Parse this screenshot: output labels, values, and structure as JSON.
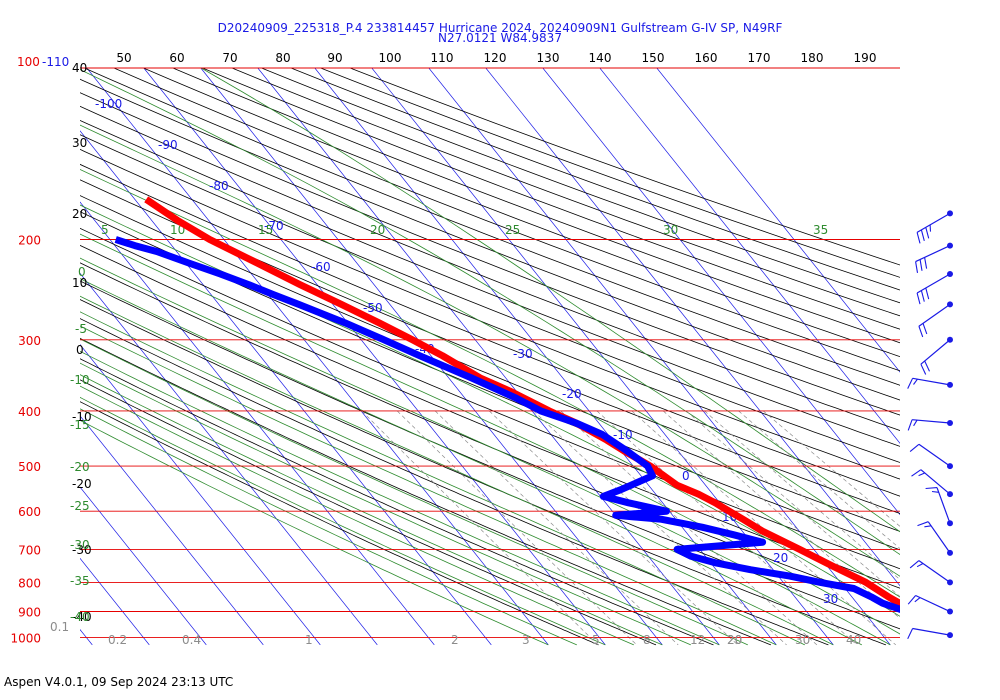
{
  "header": {
    "title_line1": "D20240909_225318_P.4 233814457 Hurricane 2024, 20240909N1 Gulfstream G-IV SP, N49RF",
    "title_line2": "N27.0121 W84.9837"
  },
  "footer": {
    "version": "Aspen V4.0.1, 09 Sep 2024  23:13 UTC"
  },
  "colors": {
    "pressure": "#e60000",
    "isotherm": "#1a1ae6",
    "theta": "#000000",
    "theta_e": "#2e8b2e",
    "mixing": "#8c8c8c",
    "temperature": "#ff0000",
    "dewpoint": "#0000ff",
    "wind": "#1a1ae6"
  },
  "chart_data": {
    "type": "skew-T log-P diagram",
    "y_axis": {
      "label_top": "100-110",
      "pressure_levels_hPa": [
        100,
        200,
        300,
        400,
        500,
        600,
        700,
        800,
        900,
        1000
      ]
    },
    "top_scale": [
      50,
      60,
      70,
      80,
      90,
      100,
      110,
      120,
      130,
      140,
      150,
      160,
      170,
      180,
      190
    ],
    "altitude_labels": [
      "40",
      "30",
      "20",
      "10",
      "0",
      "-10",
      "-20",
      "-30",
      "-40"
    ],
    "isotherm_labels_C": [
      "-100",
      "-90",
      "-80",
      "-70",
      "-60",
      "-50",
      "-40",
      "-30",
      "-20",
      "-10",
      "0",
      "10",
      "20",
      "30"
    ],
    "theta_e_top_labels": [
      "5",
      "10",
      "15",
      "20",
      "25",
      "30",
      "35"
    ],
    "theta_e_left_labels": [
      "0",
      "-5",
      "-10",
      "-15",
      "-20",
      "-25",
      "-30",
      "-35",
      "-40"
    ],
    "mixing_ratio_labels": [
      "0.1",
      "0.2",
      "0.4",
      "1",
      "2",
      "3",
      "5",
      "8",
      "12",
      "16",
      "20",
      "30",
      "40"
    ],
    "temperature_profile": [
      {
        "p": 1000,
        "t": 28.5
      },
      {
        "p": 980,
        "t": 26.5
      },
      {
        "p": 950,
        "t": 24.0
      },
      {
        "p": 920,
        "t": 21.5
      },
      {
        "p": 900,
        "t": 20.0
      },
      {
        "p": 870,
        "t": 17.5
      },
      {
        "p": 850,
        "t": 16.5
      },
      {
        "p": 800,
        "t": 14.5
      },
      {
        "p": 750,
        "t": 11.0
      },
      {
        "p": 700,
        "t": 7.5
      },
      {
        "p": 650,
        "t": 3.5
      },
      {
        "p": 620,
        "t": 1.8
      },
      {
        "p": 600,
        "t": 0.5
      },
      {
        "p": 580,
        "t": -0.8
      },
      {
        "p": 560,
        "t": -2.5
      },
      {
        "p": 540,
        "t": -5.0
      },
      {
        "p": 500,
        "t": -7.0
      },
      {
        "p": 470,
        "t": -9.5
      },
      {
        "p": 450,
        "t": -11.0
      },
      {
        "p": 420,
        "t": -14.0
      },
      {
        "p": 400,
        "t": -17.0
      },
      {
        "p": 370,
        "t": -21.0
      },
      {
        "p": 350,
        "t": -24.5
      },
      {
        "p": 320,
        "t": -28.0
      },
      {
        "p": 300,
        "t": -31.0
      },
      {
        "p": 280,
        "t": -34.5
      },
      {
        "p": 260,
        "t": -38.5
      },
      {
        "p": 240,
        "t": -43.0
      },
      {
        "p": 220,
        "t": -47.5
      },
      {
        "p": 200,
        "t": -52.5
      },
      {
        "p": 185,
        "t": -55.5
      },
      {
        "p": 170,
        "t": -58.0
      }
    ],
    "dewpoint_profile": [
      {
        "p": 990,
        "td": 23.0
      },
      {
        "p": 970,
        "td": 22.5
      },
      {
        "p": 950,
        "td": 21.5
      },
      {
        "p": 920,
        "td": 19.5
      },
      {
        "p": 900,
        "td": 17.5
      },
      {
        "p": 870,
        "td": 14.5
      },
      {
        "p": 850,
        "td": 13.5
      },
      {
        "p": 820,
        "td": 11.5
      },
      {
        "p": 800,
        "td": 6.5
      },
      {
        "p": 780,
        "td": 2.0
      },
      {
        "p": 760,
        "td": -4.0
      },
      {
        "p": 740,
        "td": -9.0
      },
      {
        "p": 720,
        "td": -12.5
      },
      {
        "p": 700,
        "td": -14.0
      },
      {
        "p": 680,
        "td": 2.0
      },
      {
        "p": 660,
        "td": -2.0
      },
      {
        "p": 640,
        "td": -6.5
      },
      {
        "p": 620,
        "td": -12.5
      },
      {
        "p": 610,
        "td": -20.0
      },
      {
        "p": 600,
        "td": -10.5
      },
      {
        "p": 580,
        "td": -16.0
      },
      {
        "p": 565,
        "td": -19.5
      },
      {
        "p": 550,
        "td": -15.5
      },
      {
        "p": 520,
        "td": -8.0
      },
      {
        "p": 500,
        "td": -7.5
      },
      {
        "p": 470,
        "td": -9.0
      },
      {
        "p": 440,
        "td": -11.0
      },
      {
        "p": 420,
        "td": -14.0
      },
      {
        "p": 400,
        "td": -18.5
      },
      {
        "p": 380,
        "td": -21.0
      },
      {
        "p": 350,
        "td": -26.0
      },
      {
        "p": 320,
        "td": -32.0
      },
      {
        "p": 300,
        "td": -36.0
      },
      {
        "p": 280,
        "td": -40.5
      },
      {
        "p": 260,
        "td": -46.0
      },
      {
        "p": 250,
        "td": -49.0
      },
      {
        "p": 240,
        "td": -52.0
      },
      {
        "p": 230,
        "td": -55.5
      },
      {
        "p": 220,
        "td": -59.5
      },
      {
        "p": 210,
        "td": -63.5
      },
      {
        "p": 205,
        "td": -66.5
      },
      {
        "p": 200,
        "td": -69.0
      }
    ],
    "wind_barbs": [
      {
        "p": 180,
        "dir": 300,
        "spd_kt": 35
      },
      {
        "p": 205,
        "dir": 295,
        "spd_kt": 30
      },
      {
        "p": 230,
        "dir": 300,
        "spd_kt": 30
      },
      {
        "p": 260,
        "dir": 305,
        "spd_kt": 20
      },
      {
        "p": 300,
        "dir": 310,
        "spd_kt": 20
      },
      {
        "p": 360,
        "dir": 260,
        "spd_kt": 15
      },
      {
        "p": 420,
        "dir": 265,
        "spd_kt": 15
      },
      {
        "p": 500,
        "dir": 235,
        "spd_kt": 10
      },
      {
        "p": 560,
        "dir": 230,
        "spd_kt": 15
      },
      {
        "p": 630,
        "dir": 200,
        "spd_kt": 15
      },
      {
        "p": 710,
        "dir": 215,
        "spd_kt": 15
      },
      {
        "p": 800,
        "dir": 235,
        "spd_kt": 15
      },
      {
        "p": 900,
        "dir": 245,
        "spd_kt": 15
      },
      {
        "p": 990,
        "dir": 260,
        "spd_kt": 10
      }
    ]
  }
}
